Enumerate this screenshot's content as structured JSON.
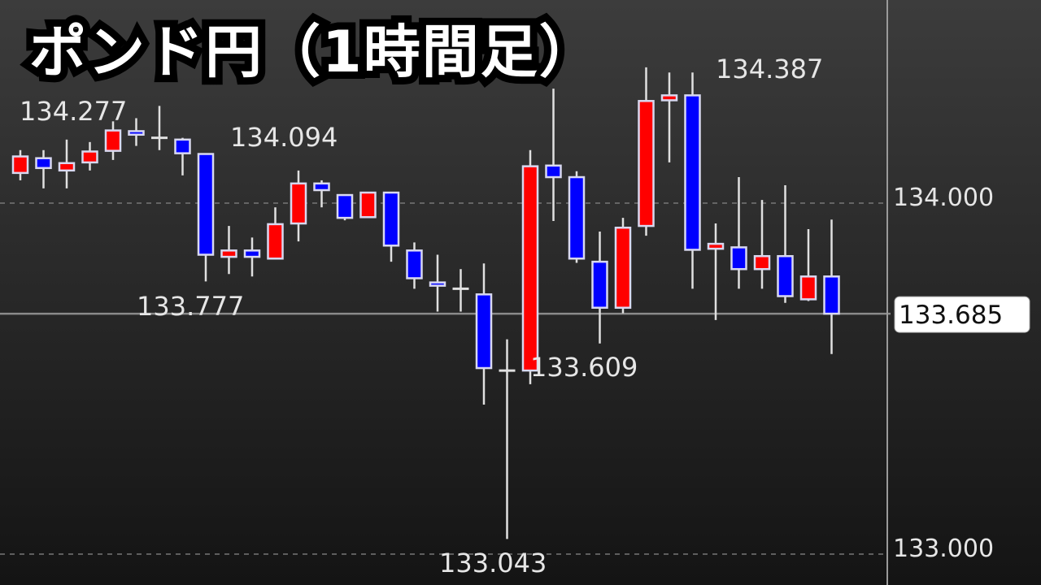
{
  "title": "ポンド円（1時間足）",
  "chart_data": {
    "type": "candlestick",
    "title": "ポンド円（1時間足）",
    "xlabel": "",
    "ylabel": "",
    "ylim": [
      132.92,
      134.58
    ],
    "y_ticks": [
      {
        "value": 134.0,
        "label": "134.000"
      },
      {
        "value": 133.0,
        "label": "133.000"
      }
    ],
    "grid": "dashed horizontal at ticks",
    "current_price": {
      "value": 133.685,
      "label": "133.685"
    },
    "colors": {
      "up": "#ff0000",
      "down": "#0000ff",
      "wick": "#e0e0e0",
      "background_top": "#3c3c3c",
      "background_bottom": "#141414"
    },
    "candles": [
      {
        "o": 134.086,
        "h": 134.151,
        "l": 134.065,
        "c": 134.133
      },
      {
        "o": 134.128,
        "h": 134.151,
        "l": 134.042,
        "c": 134.1
      },
      {
        "o": 134.093,
        "h": 134.181,
        "l": 134.042,
        "c": 134.114
      },
      {
        "o": 134.116,
        "h": 134.174,
        "l": 134.093,
        "c": 134.147
      },
      {
        "o": 134.149,
        "h": 134.233,
        "l": 134.123,
        "c": 134.207
      },
      {
        "o": 134.205,
        "h": 134.242,
        "l": 134.163,
        "c": 134.195
      },
      {
        "o": 134.186,
        "h": 134.277,
        "l": 134.151,
        "c": 134.186
      },
      {
        "o": 134.181,
        "h": 134.186,
        "l": 134.079,
        "c": 134.142
      },
      {
        "o": 134.14,
        "h": 134.14,
        "l": 133.777,
        "c": 133.853
      },
      {
        "o": 133.847,
        "h": 133.935,
        "l": 133.798,
        "c": 133.865
      },
      {
        "o": 133.865,
        "h": 133.902,
        "l": 133.791,
        "c": 133.847
      },
      {
        "o": 133.842,
        "h": 133.988,
        "l": 133.842,
        "c": 133.94
      },
      {
        "o": 133.942,
        "h": 134.093,
        "l": 133.891,
        "c": 134.056
      },
      {
        "o": 134.056,
        "h": 134.065,
        "l": 133.988,
        "c": 134.037
      },
      {
        "o": 134.023,
        "h": 134.023,
        "l": 133.951,
        "c": 133.958
      },
      {
        "o": 133.96,
        "h": 134.03,
        "l": 133.96,
        "c": 134.03
      },
      {
        "o": 134.03,
        "h": 134.03,
        "l": 133.833,
        "c": 133.879
      },
      {
        "o": 133.865,
        "h": 133.888,
        "l": 133.756,
        "c": 133.786
      },
      {
        "o": 133.774,
        "h": 133.853,
        "l": 133.691,
        "c": 133.765
      },
      {
        "o": 133.756,
        "h": 133.812,
        "l": 133.691,
        "c": 133.756
      },
      {
        "o": 133.74,
        "h": 133.828,
        "l": 133.426,
        "c": 133.53
      },
      {
        "o": 133.523,
        "h": 133.612,
        "l": 133.043,
        "c": 133.523
      },
      {
        "o": 133.523,
        "h": 134.151,
        "l": 133.484,
        "c": 134.105
      },
      {
        "o": 134.107,
        "h": 134.326,
        "l": 133.949,
        "c": 134.074
      },
      {
        "o": 134.074,
        "h": 134.091,
        "l": 133.83,
        "c": 133.842
      },
      {
        "o": 133.833,
        "h": 133.919,
        "l": 133.6,
        "c": 133.702
      },
      {
        "o": 133.702,
        "h": 133.958,
        "l": 133.686,
        "c": 133.93
      },
      {
        "o": 133.935,
        "h": 134.387,
        "l": 133.907,
        "c": 134.291
      },
      {
        "o": 134.293,
        "h": 134.372,
        "l": 134.116,
        "c": 134.307
      },
      {
        "o": 134.307,
        "h": 134.372,
        "l": 133.756,
        "c": 133.867
      },
      {
        "o": 133.87,
        "h": 133.942,
        "l": 133.667,
        "c": 133.884
      },
      {
        "o": 133.874,
        "h": 134.074,
        "l": 133.756,
        "c": 133.812
      },
      {
        "o": 133.812,
        "h": 134.009,
        "l": 133.756,
        "c": 133.849
      },
      {
        "o": 133.849,
        "h": 134.051,
        "l": 133.716,
        "c": 133.735
      },
      {
        "o": 133.726,
        "h": 133.926,
        "l": 133.721,
        "c": 133.791
      },
      {
        "o": 133.791,
        "h": 133.953,
        "l": 133.57,
        "c": 133.685
      }
    ],
    "annotations": [
      {
        "label": "134.277",
        "candle": 7
      },
      {
        "label": "134.094",
        "candle": 13
      },
      {
        "label": "133.777",
        "candle": 9
      },
      {
        "label": "133.609",
        "candle": 23
      },
      {
        "label": "133.043",
        "candle": 22
      },
      {
        "label": "134.387",
        "candle": 28
      }
    ]
  }
}
